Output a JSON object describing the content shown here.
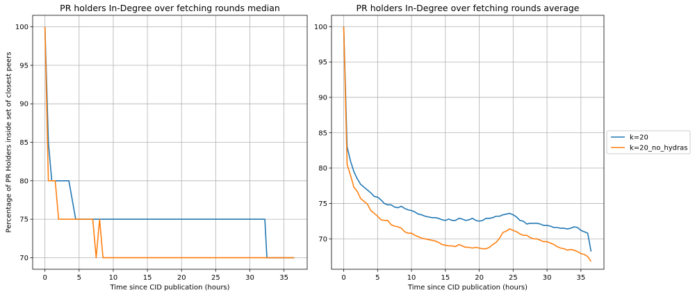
{
  "chart_data": [
    {
      "type": "line",
      "title": "PR holders In-Degree over fetching rounds median",
      "xlabel": "Time since CID publication (hours)",
      "ylabel": "Percentage of PR Holders inside set of closest peers",
      "xlim": [
        -1.8,
        38.4
      ],
      "ylim": [
        68.5,
        101.5
      ],
      "xticks": [
        0,
        5,
        10,
        15,
        20,
        25,
        30,
        35
      ],
      "yticks": [
        70,
        75,
        80,
        85,
        90,
        95,
        100
      ],
      "grid": true,
      "series": [
        {
          "name": "k=20",
          "color": "#1f77b4",
          "x": [
            0,
            0.5,
            1,
            3.5,
            4.5,
            32.2,
            32.5,
            36.5
          ],
          "y": [
            100,
            85,
            80,
            80,
            75,
            75,
            70,
            70
          ]
        },
        {
          "name": "k=20_no_hydras",
          "color": "#ff7f0e",
          "x": [
            0,
            0.5,
            1.5,
            2,
            7,
            7.5,
            8,
            8.5,
            36.5
          ],
          "y": [
            100,
            80,
            80,
            75,
            75,
            70,
            75,
            70,
            70
          ]
        }
      ]
    },
    {
      "type": "line",
      "title": "PR holders In-Degree over fetching rounds average",
      "xlabel": "Time since CID publication (hours)",
      "ylabel": "",
      "xlim": [
        -1.8,
        38.4
      ],
      "ylim": [
        65.7,
        101.6
      ],
      "xticks": [
        0,
        5,
        10,
        15,
        20,
        25,
        30,
        35
      ],
      "yticks": [
        70,
        75,
        80,
        85,
        90,
        95,
        100
      ],
      "grid": true,
      "series": [
        {
          "name": "k=20",
          "color": "#1f77b4",
          "x": [
            0,
            0.5,
            1,
            1.5,
            2,
            2.5,
            3,
            3.5,
            4,
            4.5,
            5,
            5.5,
            6,
            6.5,
            7,
            7.5,
            8,
            8.5,
            9,
            9.5,
            10,
            10.5,
            11,
            11.5,
            12,
            12.5,
            13,
            13.5,
            14,
            14.5,
            15,
            15.5,
            16,
            16.5,
            17,
            17.5,
            18,
            18.5,
            19,
            19.5,
            20,
            20.5,
            21,
            21.5,
            22,
            22.5,
            23,
            23.5,
            24,
            24.5,
            25,
            25.5,
            26,
            26.5,
            27,
            27.5,
            28,
            28.5,
            29,
            29.5,
            30,
            30.5,
            31,
            31.5,
            32,
            32.5,
            33,
            33.5,
            34,
            34.5,
            35,
            35.5,
            36,
            36.5
          ],
          "y": [
            100,
            83,
            81,
            79.5,
            78.5,
            77.7,
            77.3,
            76.9,
            76.5,
            76,
            75.9,
            75.5,
            75,
            74.8,
            74.8,
            74.5,
            74.4,
            74.6,
            74.3,
            74.1,
            74,
            73.8,
            73.5,
            73.4,
            73.2,
            73.1,
            73,
            73,
            72.9,
            72.7,
            72.6,
            72.8,
            72.6,
            72.6,
            72.9,
            72.8,
            72.6,
            72.7,
            72.9,
            72.6,
            72.5,
            72.6,
            72.9,
            72.9,
            73,
            73.2,
            73.2,
            73.4,
            73.5,
            73.6,
            73.4,
            73.1,
            72.6,
            72.5,
            72.1,
            72.2,
            72.2,
            72.2,
            72.1,
            71.9,
            71.9,
            71.8,
            71.6,
            71.6,
            71.5,
            71.5,
            71.4,
            71.5,
            71.7,
            71.6,
            71.2,
            71,
            70.8,
            68.2
          ]
        },
        {
          "name": "k=20_no_hydras",
          "color": "#ff7f0e",
          "x": [
            0,
            0.5,
            1,
            1.5,
            2,
            2.5,
            3,
            3.5,
            4,
            4.5,
            5,
            5.5,
            6,
            6.5,
            7,
            7.5,
            8,
            8.5,
            9,
            9.5,
            10,
            10.5,
            11,
            11.5,
            12,
            12.5,
            13,
            13.5,
            14,
            14.5,
            15,
            15.5,
            16,
            16.5,
            17,
            17.5,
            18,
            18.5,
            19,
            19.5,
            20,
            20.5,
            21,
            21.5,
            22,
            22.5,
            23,
            23.5,
            24,
            24.5,
            25,
            25.5,
            26,
            26.5,
            27,
            27.5,
            28,
            28.5,
            29,
            29.5,
            30,
            30.5,
            31,
            31.5,
            32,
            32.5,
            33,
            33.5,
            34,
            34.5,
            35,
            35.5,
            36,
            36.5
          ],
          "y": [
            100,
            80.5,
            79,
            77.3,
            76.7,
            75.7,
            75.3,
            74.9,
            74,
            73.6,
            73.2,
            72.7,
            72.6,
            72.6,
            72,
            71.8,
            71.7,
            71.5,
            71,
            70.8,
            70.8,
            70.5,
            70.3,
            70.1,
            70,
            69.9,
            69.8,
            69.7,
            69.5,
            69.2,
            69.1,
            69,
            69,
            68.9,
            69.2,
            69,
            68.8,
            68.8,
            68.7,
            68.8,
            68.7,
            68.6,
            68.6,
            68.8,
            69.2,
            69.5,
            70.1,
            70.9,
            71.1,
            71.4,
            71.2,
            71,
            70.7,
            70.5,
            70.5,
            70.2,
            70,
            70,
            69.8,
            69.6,
            69.6,
            69.4,
            69.2,
            68.9,
            68.7,
            68.6,
            68.4,
            68.5,
            68.4,
            68.2,
            67.9,
            67.8,
            67.5,
            66.8
          ]
        }
      ]
    }
  ],
  "legend": {
    "placement": "right",
    "items": [
      {
        "label": "k=20",
        "color": "#1f77b4"
      },
      {
        "label": "k=20_no_hydras",
        "color": "#ff7f0e"
      }
    ]
  }
}
